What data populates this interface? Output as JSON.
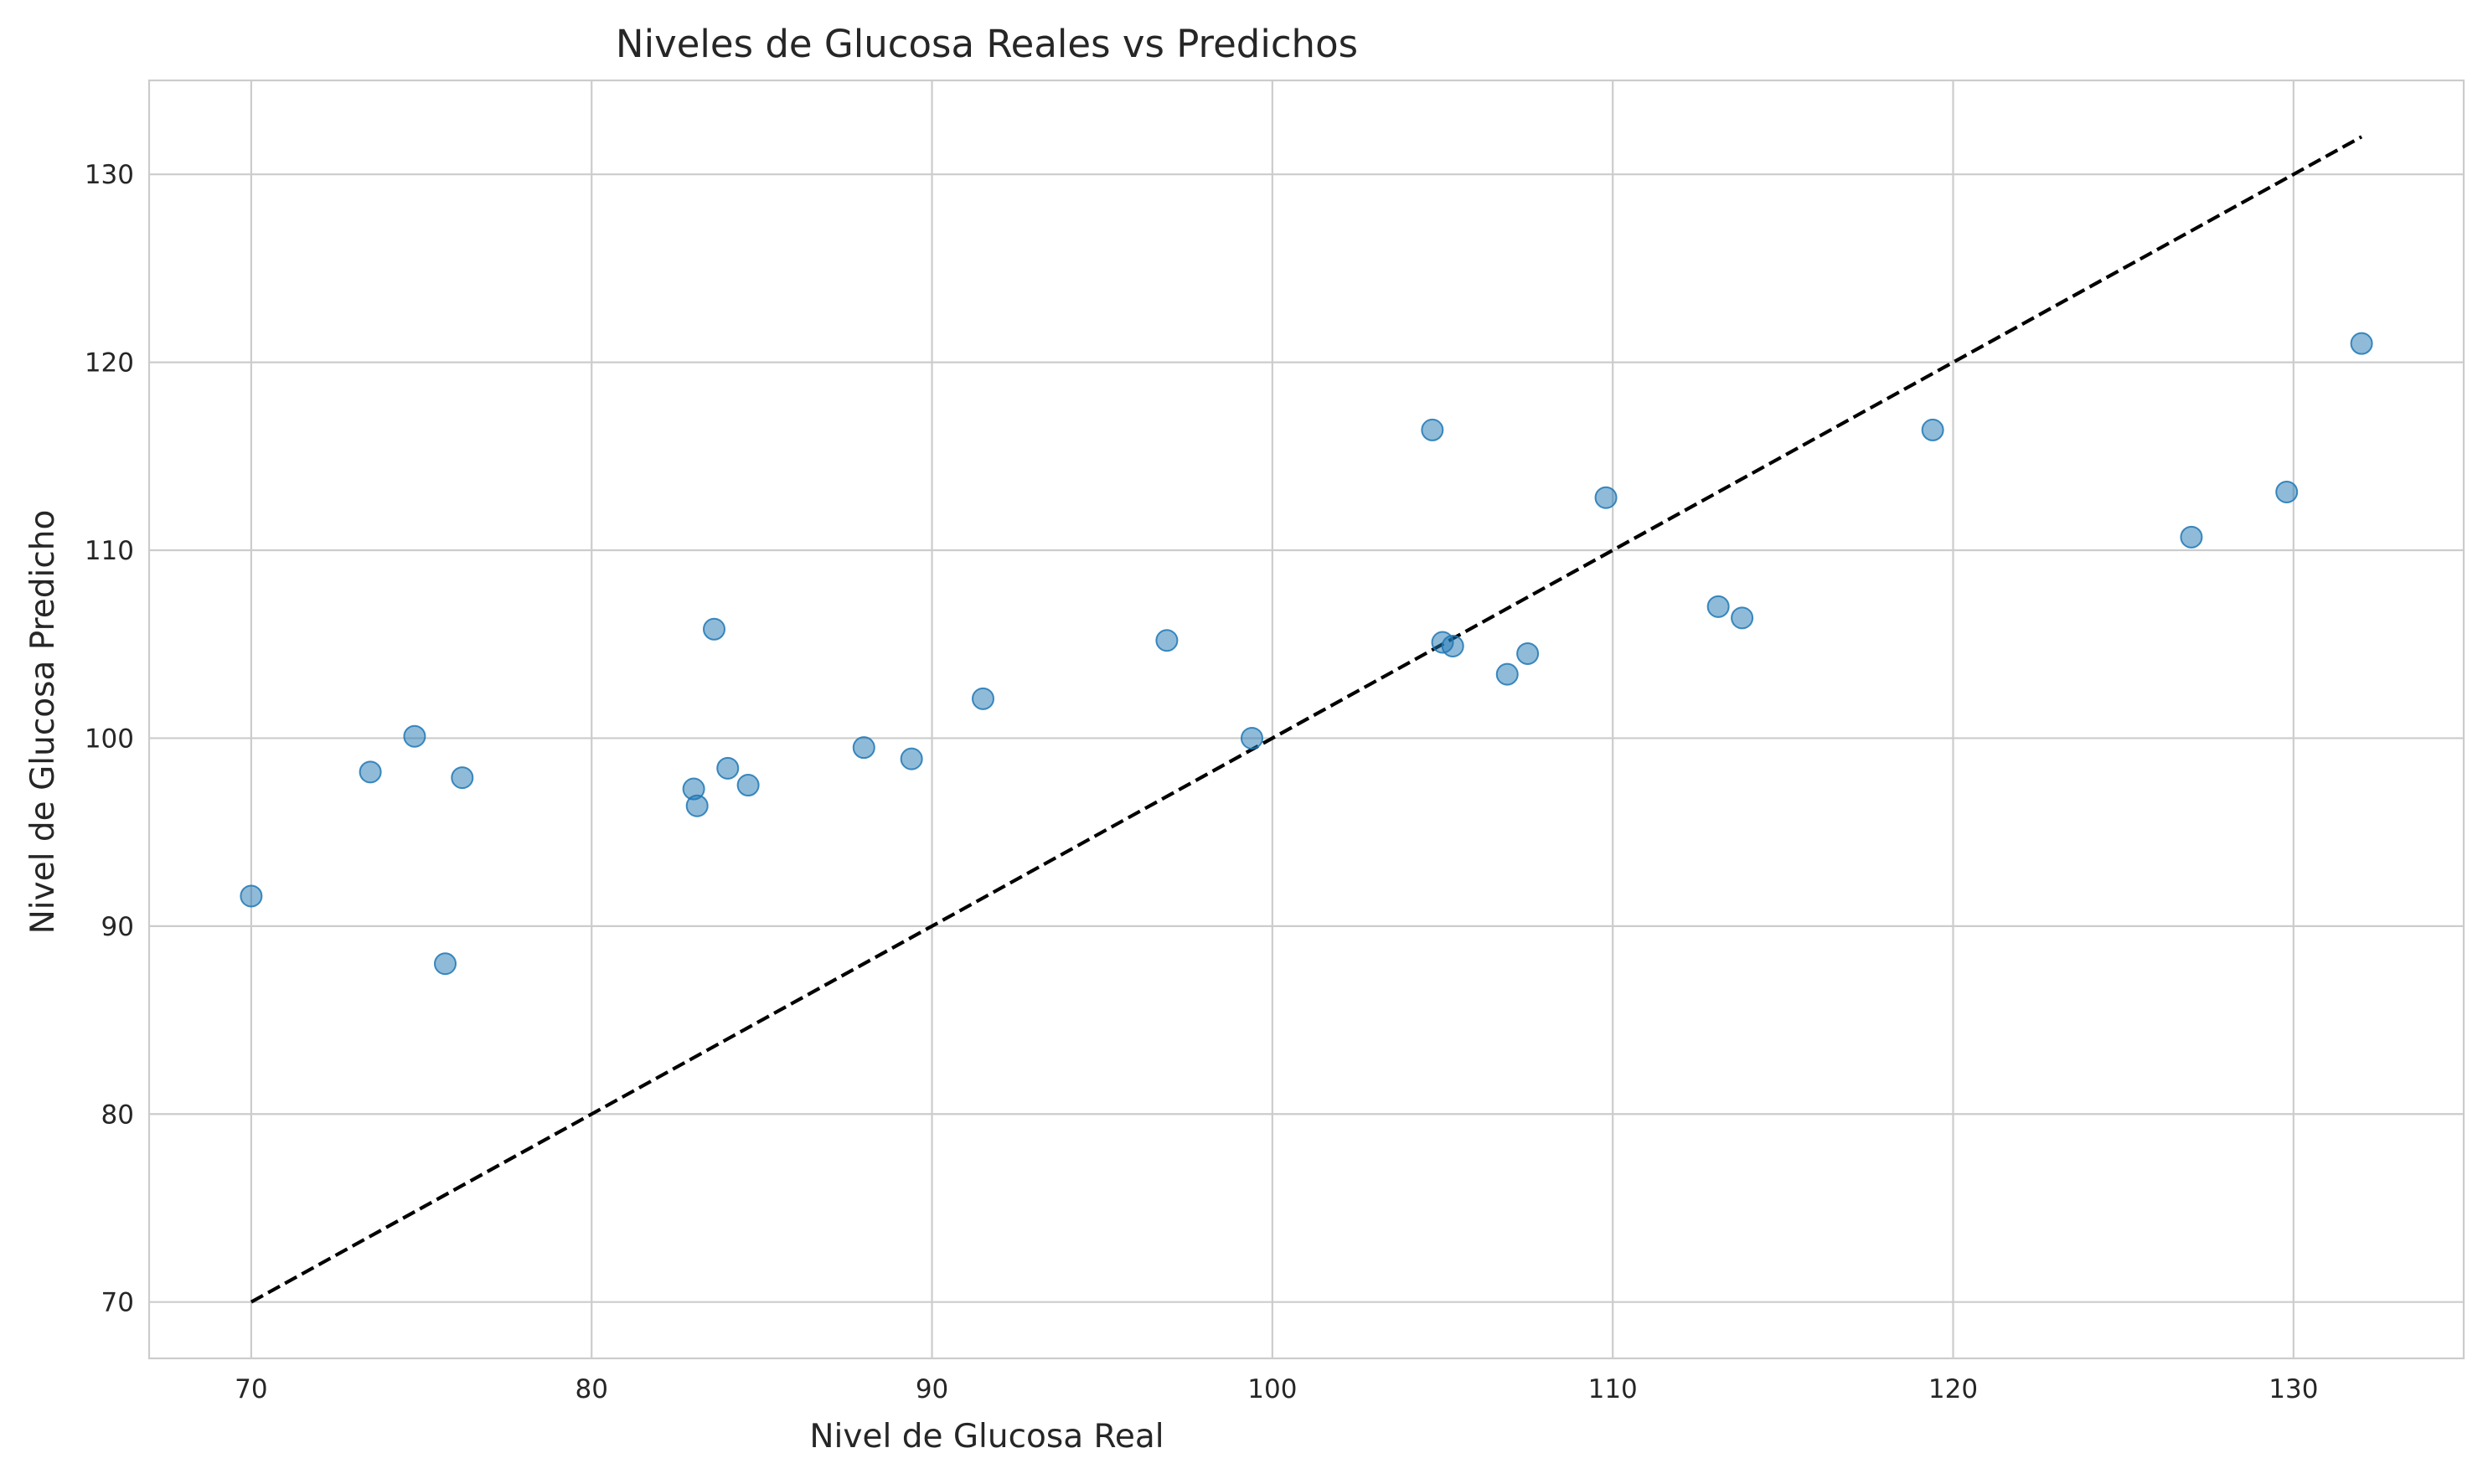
{
  "chart_data": {
    "type": "scatter",
    "title": "Niveles de Glucosa Reales vs Predichos",
    "xlabel": "Nivel de Glucosa Real",
    "ylabel": "Nivel de Glucosa Predicho",
    "xlim": [
      67,
      135
    ],
    "ylim": [
      67,
      135
    ],
    "xticks": [
      70,
      80,
      90,
      100,
      110,
      120,
      130
    ],
    "yticks": [
      70,
      80,
      90,
      100,
      110,
      120,
      130
    ],
    "grid": true,
    "point_color": "#1f77b4",
    "point_alpha": 0.5,
    "reference_line": {
      "style": "dashed",
      "color": "#000000",
      "from": [
        70,
        70
      ],
      "to": [
        132,
        132
      ]
    },
    "points": [
      {
        "x": 70.0,
        "y": 91.6
      },
      {
        "x": 73.5,
        "y": 98.2
      },
      {
        "x": 74.8,
        "y": 100.1
      },
      {
        "x": 75.7,
        "y": 88.0
      },
      {
        "x": 76.2,
        "y": 97.9
      },
      {
        "x": 83.0,
        "y": 97.3
      },
      {
        "x": 83.1,
        "y": 96.4
      },
      {
        "x": 83.6,
        "y": 105.8
      },
      {
        "x": 84.0,
        "y": 98.4
      },
      {
        "x": 84.6,
        "y": 97.5
      },
      {
        "x": 88.0,
        "y": 99.5
      },
      {
        "x": 89.4,
        "y": 98.9
      },
      {
        "x": 91.5,
        "y": 102.1
      },
      {
        "x": 96.9,
        "y": 105.2
      },
      {
        "x": 99.4,
        "y": 100.0
      },
      {
        "x": 104.7,
        "y": 116.4
      },
      {
        "x": 105.0,
        "y": 105.1
      },
      {
        "x": 105.3,
        "y": 104.9
      },
      {
        "x": 106.9,
        "y": 103.4
      },
      {
        "x": 107.5,
        "y": 104.5
      },
      {
        "x": 109.8,
        "y": 112.8
      },
      {
        "x": 113.1,
        "y": 107.0
      },
      {
        "x": 113.8,
        "y": 106.4
      },
      {
        "x": 119.4,
        "y": 116.4
      },
      {
        "x": 127.0,
        "y": 110.7
      },
      {
        "x": 129.8,
        "y": 113.1
      },
      {
        "x": 132.0,
        "y": 121.0
      }
    ]
  }
}
